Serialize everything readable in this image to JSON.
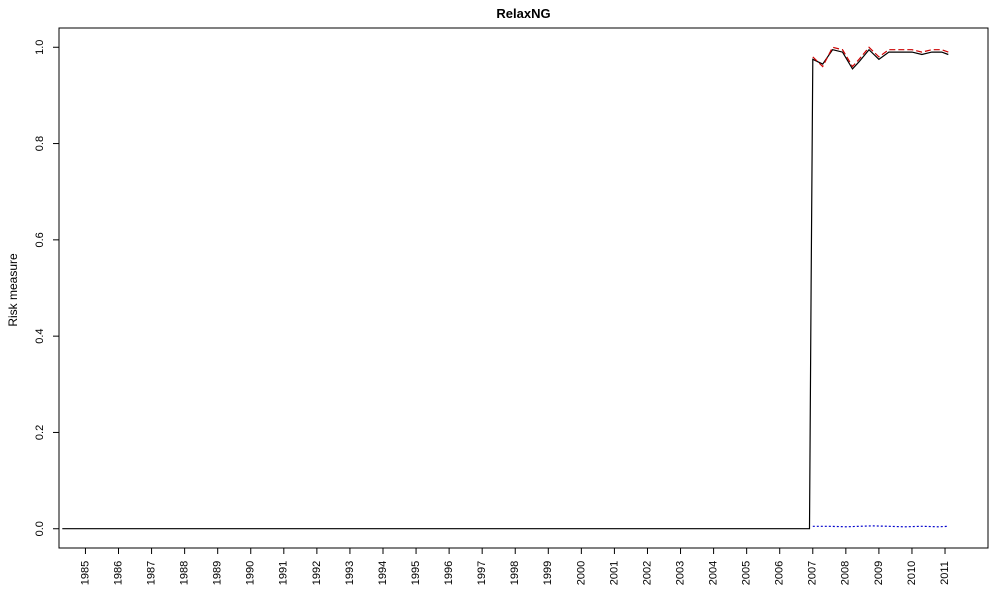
{
  "chart_data": {
    "type": "line",
    "title": "RelaxNG",
    "xlabel": "",
    "ylabel": "Risk measure",
    "ylim": [
      -0.04,
      1.04
    ],
    "xlim": [
      1984.2,
      2012.3
    ],
    "grid": false,
    "legend": "none",
    "yticks": [
      0.0,
      0.2,
      0.4,
      0.6,
      0.8,
      1.0
    ],
    "ytick_labels": [
      "0.0",
      "0.2",
      "0.4",
      "0.6",
      "0.8",
      "1.0"
    ],
    "xticks": [
      1985,
      1986,
      1987,
      1988,
      1989,
      1990,
      1991,
      1992,
      1993,
      1994,
      1995,
      1996,
      1997,
      1998,
      1999,
      2000,
      2001,
      2002,
      2003,
      2004,
      2005,
      2006,
      2007,
      2008,
      2009,
      2010,
      2011
    ],
    "xtick_labels": [
      "1985",
      "1986",
      "1987",
      "1988",
      "1989",
      "1990",
      "1991",
      "1992",
      "1993",
      "1994",
      "1995",
      "1996",
      "1997",
      "1998",
      "1999",
      "2000",
      "2001",
      "2002",
      "2003",
      "2004",
      "2005",
      "2006",
      "2007",
      "2008",
      "2009",
      "2010",
      "2011"
    ],
    "series": [
      {
        "color": "#000000",
        "style": "solid",
        "x": [
          1984.3,
          2006.9,
          2006.95,
          2007.0,
          2007.3,
          2007.6,
          2007.9,
          2008.2,
          2008.4,
          2008.7,
          2009.0,
          2009.3,
          2009.6,
          2010.0,
          2010.3,
          2010.6,
          2010.9,
          2011.1
        ],
        "values": [
          0.0,
          0.0,
          0.5,
          0.975,
          0.965,
          0.995,
          0.99,
          0.955,
          0.97,
          0.995,
          0.975,
          0.99,
          0.99,
          0.99,
          0.985,
          0.99,
          0.99,
          0.985
        ]
      },
      {
        "color": "#cc0000",
        "style": "dashed",
        "x": [
          2007.0,
          2007.3,
          2007.6,
          2007.9,
          2008.2,
          2008.4,
          2008.7,
          2009.0,
          2009.3,
          2009.6,
          2010.0,
          2010.3,
          2010.6,
          2010.9,
          2011.1
        ],
        "values": [
          0.98,
          0.96,
          1.0,
          0.995,
          0.96,
          0.975,
          1.0,
          0.98,
          0.995,
          0.995,
          0.995,
          0.99,
          0.995,
          0.995,
          0.99
        ]
      },
      {
        "color": "#0000cc",
        "style": "dotted",
        "x": [
          2007.0,
          2007.5,
          2008.0,
          2008.4,
          2008.8,
          2009.3,
          2009.8,
          2010.3,
          2010.8,
          2011.1
        ],
        "values": [
          0.005,
          0.005,
          0.004,
          0.005,
          0.006,
          0.005,
          0.004,
          0.005,
          0.004,
          0.005
        ]
      }
    ]
  }
}
